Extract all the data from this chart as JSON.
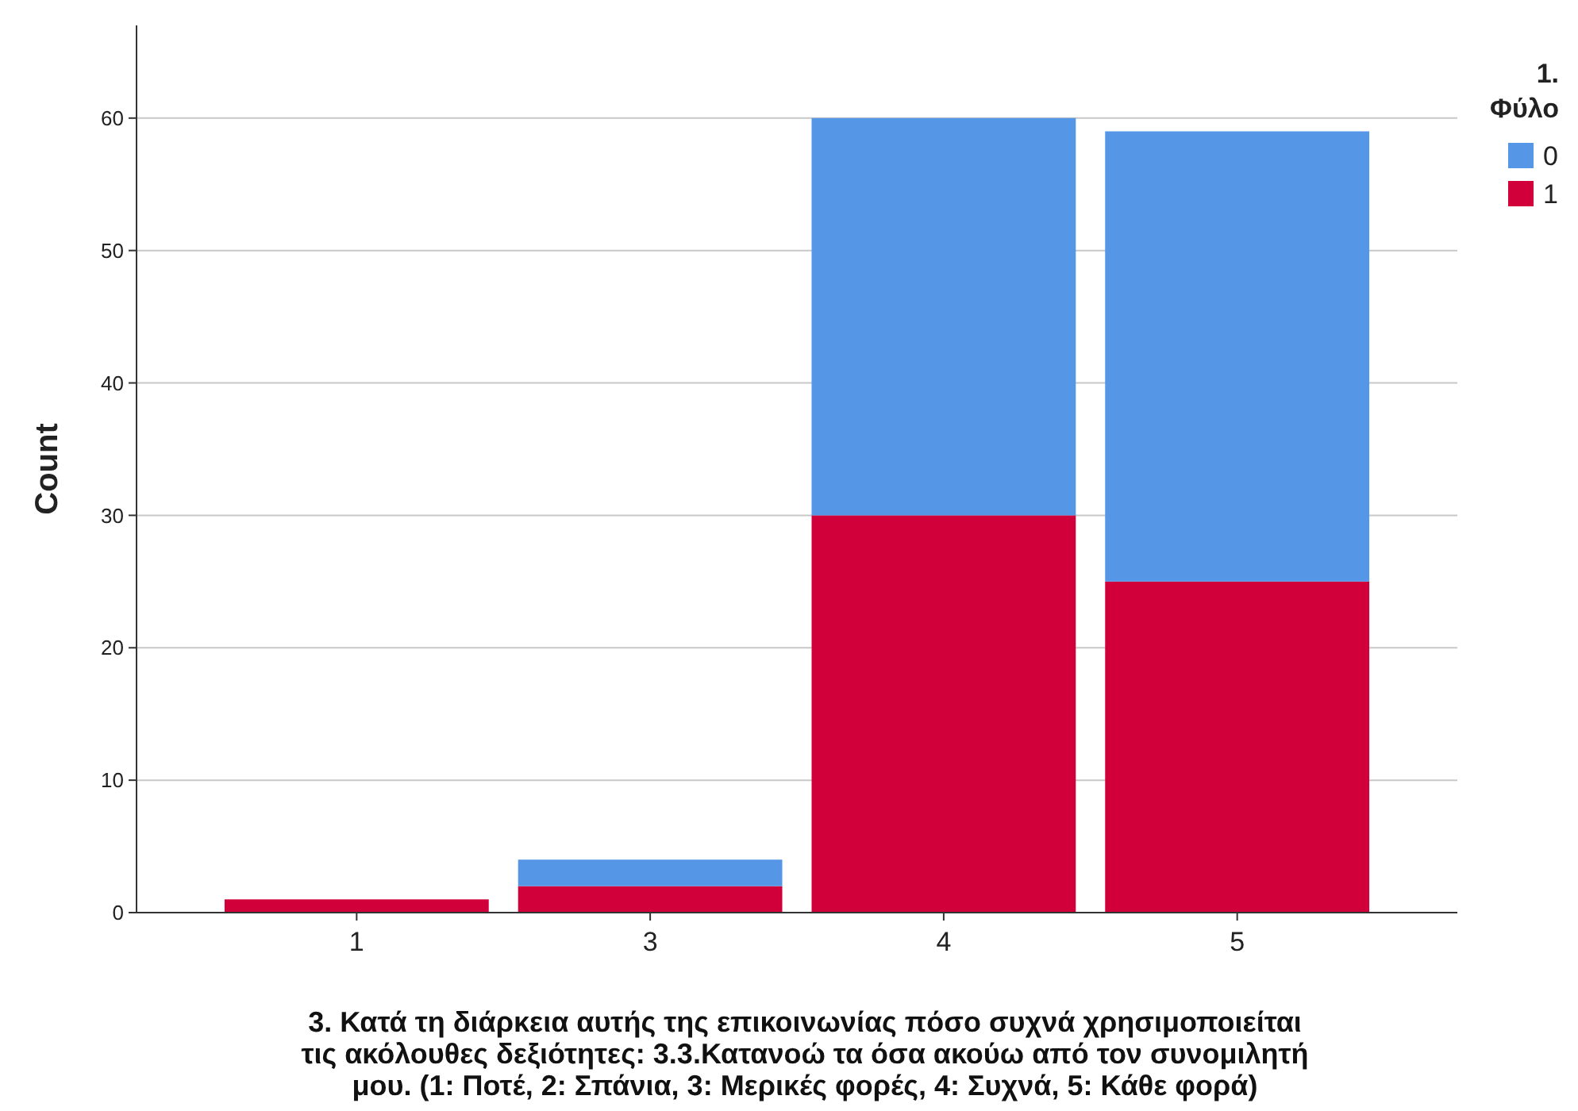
{
  "chart_data": {
    "type": "bar",
    "stacked": true,
    "xlabel": "3. Κατά τη διάρκεια αυτής της επικοινωνίας πόσο συχνά χρησιμοποιείται τις ακόλουθες δεξιότητες: 3.3.Κατανοώ τα όσα ακούω από τον συνομιλητή μου. (1: Ποτέ, 2: Σπάνια, 3: Μερικές φορές, 4: Συχνά, 5: Κάθε φορά)",
    "ylabel": "Count",
    "legend_title": "1. Φύλο",
    "legend": "right",
    "grid": "y",
    "categories": [
      "1",
      "3",
      "4",
      "5"
    ],
    "ylim": [
      0,
      67
    ],
    "yticks": [
      0,
      10,
      20,
      30,
      40,
      50,
      60
    ],
    "series": [
      {
        "name": "1",
        "color": "#d1003b",
        "values": [
          1,
          2,
          30,
          25
        ]
      },
      {
        "name": "0",
        "color": "#5596e6",
        "values": [
          0,
          2,
          30,
          34
        ]
      }
    ]
  }
}
